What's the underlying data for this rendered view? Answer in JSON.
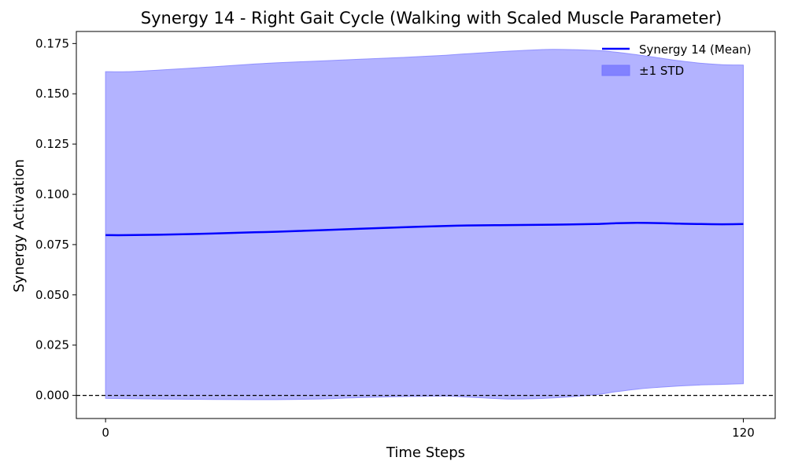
{
  "chart_data": {
    "type": "area",
    "title": "Synergy 14 - Right Gait Cycle (Walking with Scaled Muscle Parameter)",
    "xlabel": "Time Steps",
    "ylabel": "Synergy Activation",
    "xlim": [
      -5.5,
      126
    ],
    "ylim": [
      -0.0115,
      0.181
    ],
    "x_ticks": [
      0,
      120
    ],
    "x_tick_labels": [
      "0",
      "120"
    ],
    "y_ticks": [
      0.0,
      0.025,
      0.05,
      0.075,
      0.1,
      0.125,
      0.15,
      0.175
    ],
    "y_tick_labels": [
      "0.000",
      "0.025",
      "0.050",
      "0.075",
      "0.100",
      "0.125",
      "0.150",
      "0.175"
    ],
    "grid": false,
    "legend_placement": "top-right",
    "reference_line": {
      "y": 0.0,
      "style": "dashed",
      "color": "#000000"
    },
    "series": [
      {
        "name": "Synergy 14 (Mean)",
        "color": "#0000ff",
        "x": [
          0,
          4,
          10,
          20,
          28,
          32,
          40,
          48,
          56,
          64,
          68,
          76,
          84,
          92,
          96,
          100,
          104,
          108,
          112,
          116,
          120
        ],
        "values": [
          0.0797,
          0.0797,
          0.0799,
          0.0805,
          0.0811,
          0.0814,
          0.0821,
          0.0829,
          0.0836,
          0.0843,
          0.0845,
          0.0847,
          0.0849,
          0.0852,
          0.0856,
          0.0858,
          0.0857,
          0.0854,
          0.0852,
          0.0851,
          0.0852
        ]
      }
    ],
    "band": {
      "name": "±1 STD",
      "color": "#8080ff",
      "x": [
        0,
        4,
        10,
        20,
        28,
        32,
        40,
        48,
        56,
        64,
        68,
        76,
        84,
        92,
        96,
        100,
        104,
        108,
        112,
        116,
        120
      ],
      "upper": [
        0.161,
        0.161,
        0.1618,
        0.1634,
        0.1648,
        0.1654,
        0.1663,
        0.1672,
        0.1681,
        0.1692,
        0.1699,
        0.1712,
        0.1721,
        0.1716,
        0.1707,
        0.1694,
        0.1679,
        0.1664,
        0.1652,
        0.1645,
        0.1643
      ],
      "lower": [
        -0.0015,
        -0.0016,
        -0.0018,
        -0.002,
        -0.0021,
        -0.0021,
        -0.0018,
        -0.0011,
        -0.0006,
        -0.0004,
        -0.0008,
        -0.0018,
        -0.0013,
        0.0003,
        0.0018,
        0.0031,
        0.004,
        0.0047,
        0.0052,
        0.0055,
        0.0058
      ]
    }
  }
}
